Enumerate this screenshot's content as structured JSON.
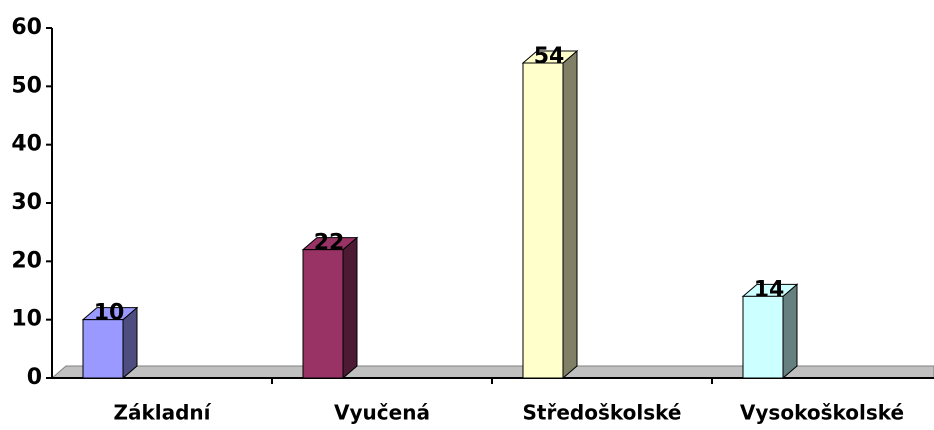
{
  "chart_data": {
    "type": "bar3d",
    "categories": [
      "Základní",
      "Vyučená",
      "Středoškolské",
      "Vysokoškolské"
    ],
    "values": [
      10,
      22,
      54,
      14
    ],
    "colors": [
      "#9999ff",
      "#993366",
      "#ffffcc",
      "#ccffff"
    ],
    "side_colors": [
      "#4d4d80",
      "#4d1a33",
      "#808066",
      "#668080"
    ],
    "ylim": [
      0,
      60
    ],
    "yticks": [
      0,
      10,
      20,
      30,
      40,
      50,
      60
    ]
  }
}
